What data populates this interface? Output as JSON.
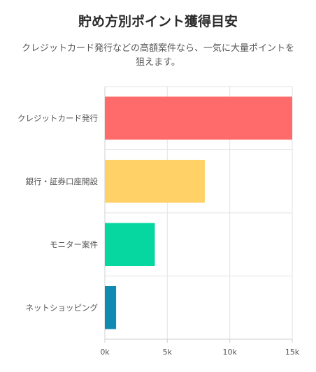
{
  "header": {
    "title": "貯め方別ポイント獲得目安",
    "subtitle": "クレジットカード発行などの高額案件なら、一気に大量ポイントを狙えます。"
  },
  "chart_data": {
    "type": "bar",
    "orientation": "horizontal",
    "title": "貯め方別ポイント獲得目安",
    "categories": [
      "クレジットカード発行",
      "銀行・証券口座開設",
      "モニター案件",
      "ネットショッピング"
    ],
    "values": [
      15000,
      8000,
      4000,
      900
    ],
    "colors": [
      "#ff6b6b",
      "#ffd166",
      "#06d6a0",
      "#118ab2"
    ],
    "xlim": [
      0,
      15000
    ],
    "xticks": [
      0,
      5000,
      10000,
      15000
    ],
    "xtick_labels": [
      "0k",
      "5k",
      "10k",
      "15k"
    ],
    "grid": true,
    "legend": "none"
  }
}
